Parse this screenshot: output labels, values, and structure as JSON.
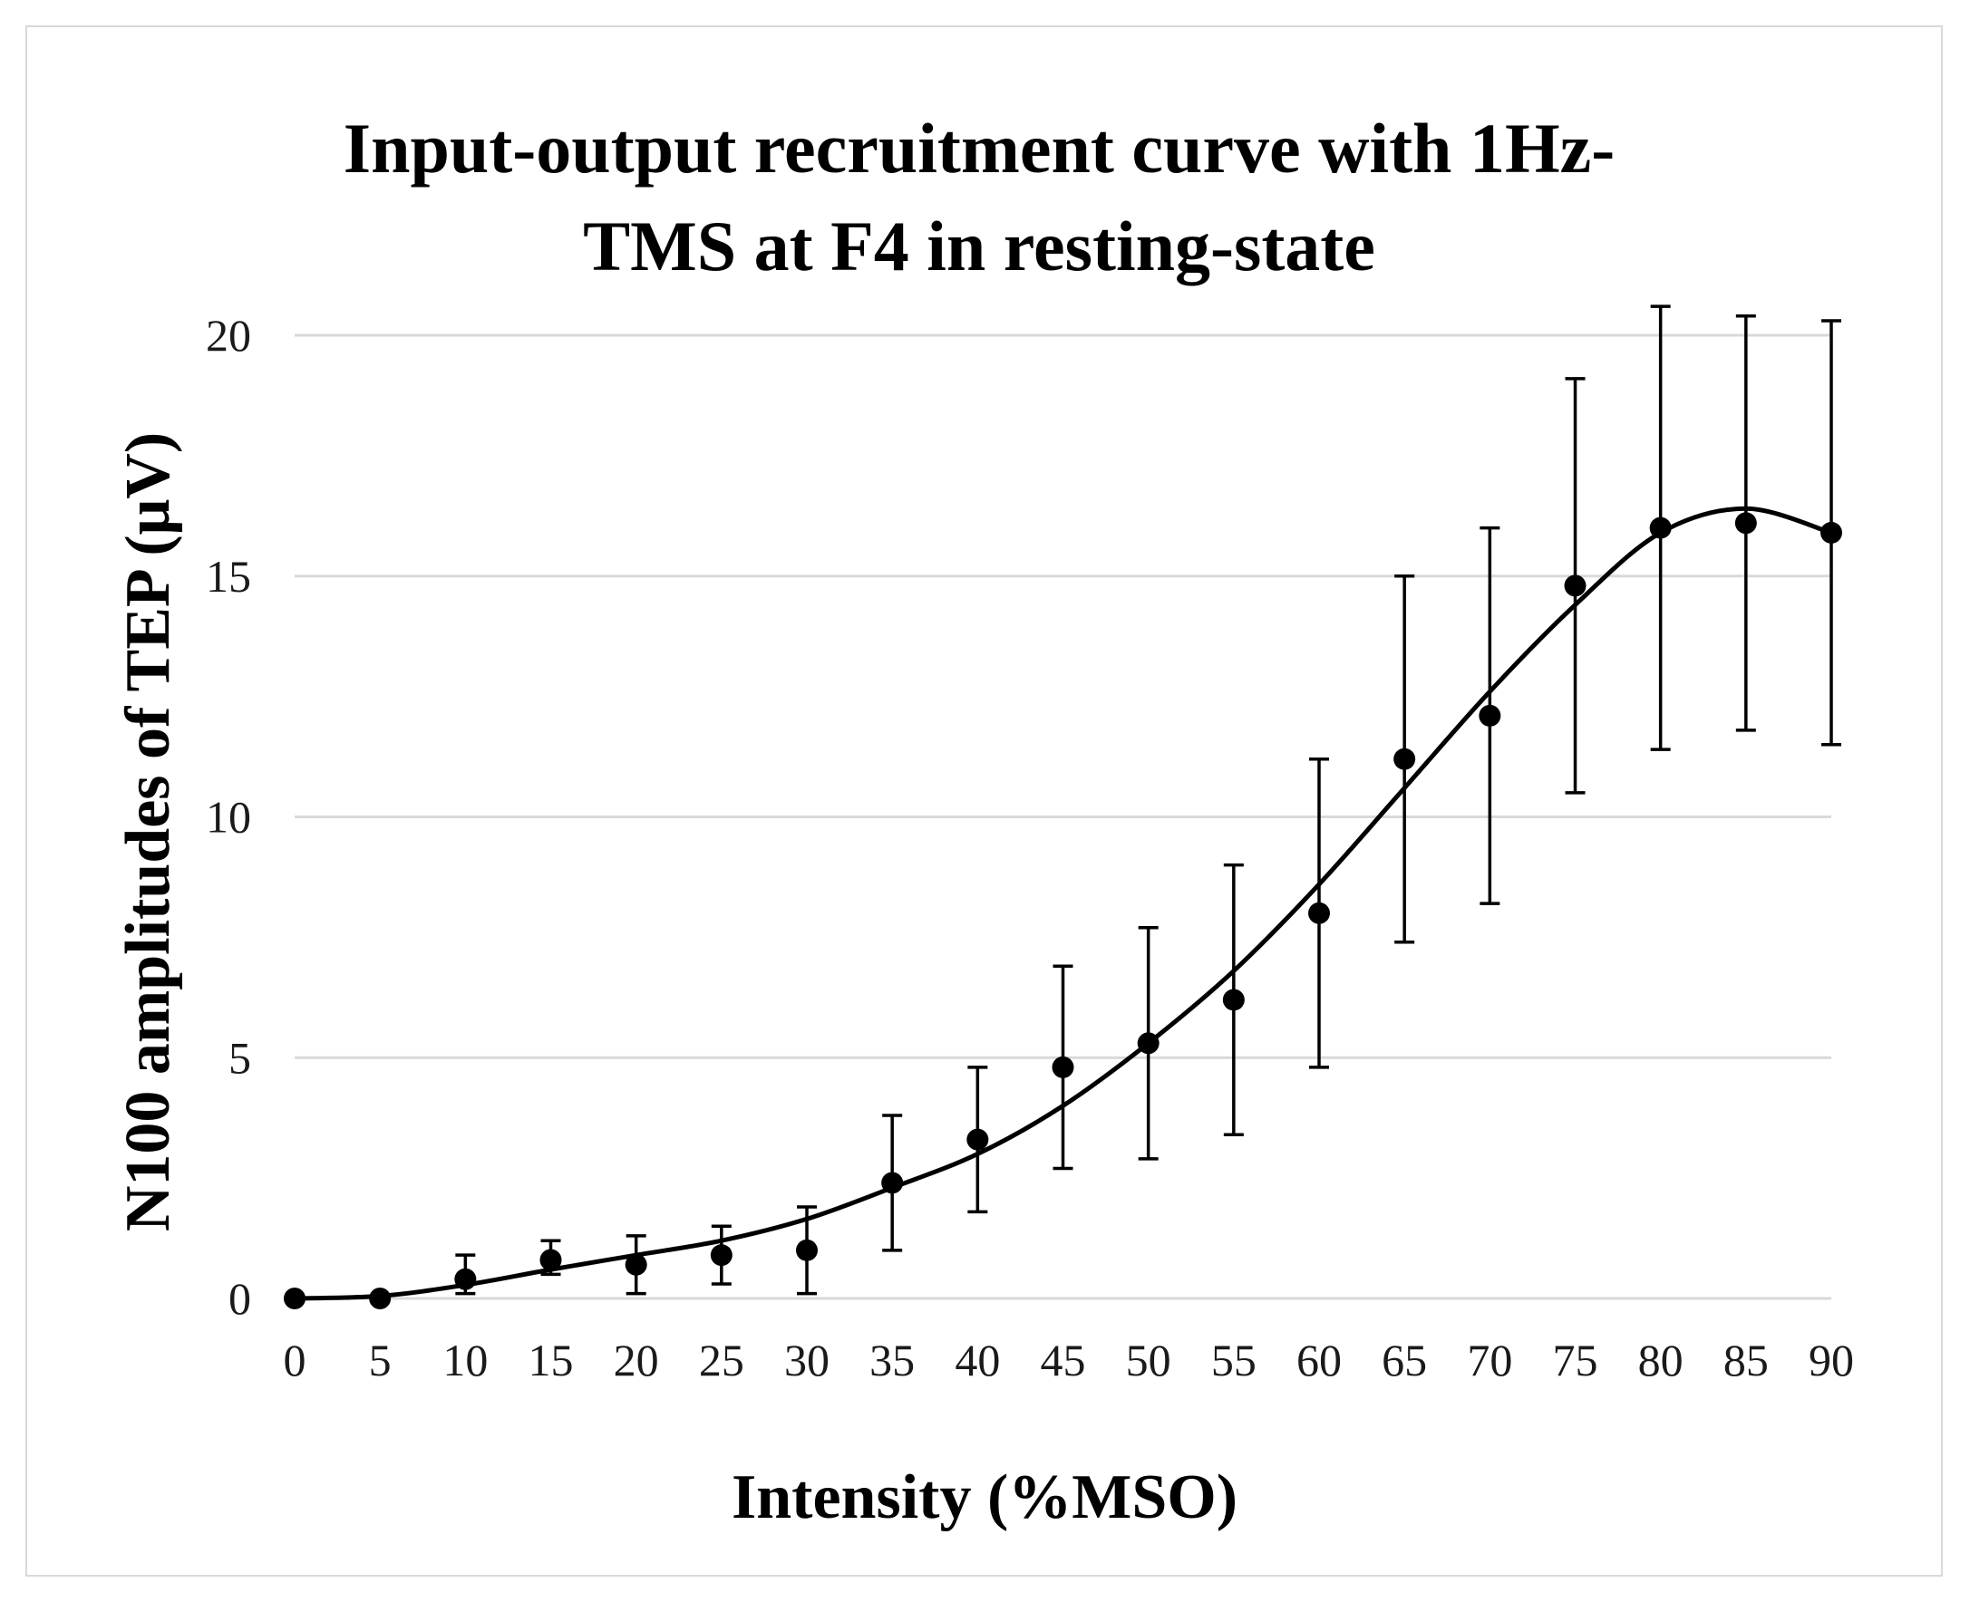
{
  "chart_data": {
    "type": "scatter",
    "title_lines": [
      "Input-output recruitment curve with 1Hz-",
      "TMS at F4 in resting-state"
    ],
    "xlabel": "Intensity (%MSO)",
    "ylabel": "N100 amplitudes of TEP (μV)",
    "xlim": [
      0,
      90
    ],
    "ylim": [
      0,
      20
    ],
    "x_ticks": [
      0,
      5,
      10,
      15,
      20,
      25,
      30,
      35,
      40,
      45,
      50,
      55,
      60,
      65,
      70,
      75,
      80,
      85,
      90
    ],
    "y_ticks": [
      0,
      5,
      10,
      15,
      20
    ],
    "grid": true,
    "series": [
      {
        "name": "N100 amplitude",
        "x": [
          0,
          5,
          10,
          15,
          20,
          25,
          30,
          35,
          40,
          45,
          50,
          55,
          60,
          65,
          70,
          75,
          80,
          85,
          90
        ],
        "y": [
          0,
          0,
          0.4,
          0.8,
          0.7,
          0.9,
          1.0,
          2.4,
          3.3,
          4.8,
          5.3,
          6.2,
          8.0,
          11.2,
          12.1,
          14.8,
          16.0,
          16.1,
          15.9
        ],
        "err_low": [
          0,
          0,
          0.3,
          0.3,
          0.6,
          0.6,
          0.9,
          1.4,
          1.5,
          2.1,
          2.4,
          2.8,
          3.2,
          3.8,
          3.9,
          4.3,
          4.6,
          4.3,
          4.4
        ],
        "err_high": [
          0,
          0,
          0.5,
          0.4,
          0.6,
          0.6,
          0.9,
          1.4,
          1.5,
          2.1,
          2.4,
          2.8,
          3.2,
          3.8,
          3.9,
          4.3,
          4.6,
          4.3,
          4.4
        ]
      }
    ],
    "fit_curve": {
      "type": "polynomial trendline",
      "x": [
        0,
        5,
        10,
        15,
        20,
        25,
        30,
        35,
        40,
        45,
        50,
        55,
        60,
        65,
        70,
        75,
        80,
        85,
        90
      ],
      "y": [
        0,
        0.05,
        0.28,
        0.6,
        0.9,
        1.2,
        1.65,
        2.3,
        3.0,
        4.0,
        5.3,
        6.8,
        8.6,
        10.6,
        12.6,
        14.4,
        15.9,
        16.4,
        15.9
      ]
    }
  },
  "colors": {
    "points": "#000000",
    "grid": "#d9d9d9",
    "frame": "#d9d9d9"
  }
}
